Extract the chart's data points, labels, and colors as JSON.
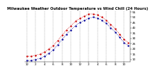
{
  "title": "Milwaukee Weather Outdoor Temperature vs Wind Chill (24 Hours)",
  "hours": [
    0,
    1,
    2,
    3,
    4,
    5,
    6,
    7,
    8,
    9,
    10,
    11,
    12,
    13,
    14,
    15,
    16,
    17,
    18,
    19,
    20,
    21,
    22,
    23
  ],
  "temp": [
    13,
    13,
    14,
    15,
    17,
    20,
    23,
    28,
    33,
    38,
    42,
    46,
    49,
    51,
    53,
    53,
    52,
    50,
    47,
    43,
    39,
    34,
    29,
    26
  ],
  "windchill": [
    9,
    9,
    10,
    11,
    13,
    16,
    19,
    24,
    29,
    34,
    38,
    42,
    45,
    47,
    49,
    50,
    49,
    47,
    44,
    40,
    36,
    31,
    26,
    23
  ],
  "temp_color": "#cc0000",
  "windchill_color": "#000099",
  "bg_color": "#ffffff",
  "plot_bg": "#ffffff",
  "grid_color": "#666666",
  "ylim": [
    8,
    56
  ],
  "yticks": [
    10,
    15,
    20,
    25,
    30,
    35,
    40,
    45,
    50,
    55
  ],
  "ytick_labels": [
    "10",
    "15",
    "20",
    "25",
    "30",
    "35",
    "40",
    "45",
    "50",
    "55"
  ],
  "vgrid_x": [
    0,
    2,
    4,
    6,
    8,
    10,
    12,
    14,
    16,
    18,
    20,
    22
  ],
  "xticks": [
    0,
    2,
    4,
    6,
    8,
    10,
    12,
    14,
    16,
    18,
    20,
    22
  ],
  "xtick_labels": [
    "12",
    "2",
    "4",
    "6",
    "8",
    "10",
    "12",
    "2",
    "4",
    "6",
    "8",
    "10"
  ],
  "title_fontsize": 3.8,
  "tick_fontsize": 3.0,
  "marker_size": 1.5,
  "linewidth": 0.0
}
